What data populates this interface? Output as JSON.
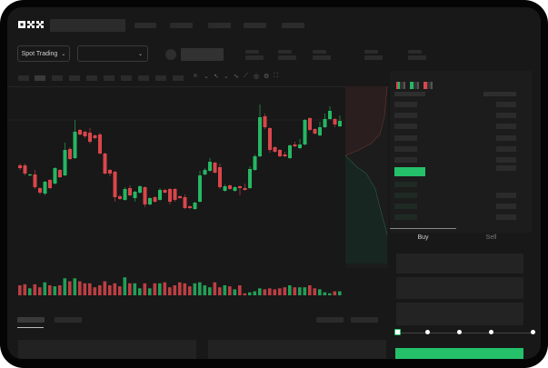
{
  "brand": {
    "logo_text": "OKX"
  },
  "toolbar": {
    "market_selector_label": "Spot Trading",
    "pair_selector_value": "",
    "chevron_icon": "chevron-down-icon"
  },
  "chart_toolbar": {
    "icons": [
      "indicator-icon",
      "chevron-down-icon",
      "cursor-icon",
      "chevron-down-icon",
      "line-icon",
      "ruler-icon",
      "camera-icon",
      "settings-icon",
      "fullscreen-icon"
    ]
  },
  "orderbook": {
    "view_icons": [
      "orderbook-both-icon",
      "orderbook-bids-icon",
      "orderbook-asks-icon"
    ]
  },
  "trade_panel": {
    "tabs": [
      {
        "label": "Buy",
        "active": true
      },
      {
        "label": "Sell",
        "active": false
      }
    ],
    "slider_percent": 0,
    "slider_marks": [
      0,
      25,
      50,
      75,
      100
    ]
  },
  "colors": {
    "up": "#26b763",
    "down": "#d9464b",
    "accent": "#25c06a",
    "background": "#181818"
  },
  "chart_data": {
    "type": "candlestick",
    "grid": false,
    "candles": [
      [
        68,
        70,
        63,
        65
      ],
      [
        68,
        70,
        57,
        59
      ],
      [
        57,
        59,
        56,
        58
      ],
      [
        58,
        63,
        42,
        44
      ],
      [
        43,
        44,
        36,
        38
      ],
      [
        37,
        51,
        35,
        50
      ],
      [
        52,
        53,
        42,
        43
      ],
      [
        48,
        66,
        47,
        65
      ],
      [
        63,
        64,
        54,
        55
      ],
      [
        57,
        93,
        56,
        85
      ],
      [
        86,
        88,
        74,
        75
      ],
      [
        76,
        118,
        75,
        105
      ],
      [
        107,
        108,
        101,
        102
      ],
      [
        105,
        106,
        98,
        100
      ],
      [
        104,
        109,
        92,
        94
      ],
      [
        101,
        102,
        97,
        98
      ],
      [
        102,
        104,
        80,
        81
      ],
      [
        81,
        82,
        58,
        59
      ],
      [
        63,
        64,
        56,
        59
      ],
      [
        61,
        62,
        28,
        33
      ],
      [
        34,
        36,
        30,
        31
      ],
      [
        30,
        44,
        29,
        42
      ],
      [
        43,
        46,
        34,
        35
      ],
      [
        32,
        40,
        28,
        39
      ],
      [
        38,
        46,
        37,
        45
      ],
      [
        44,
        45,
        22,
        25
      ],
      [
        25,
        33,
        24,
        32
      ],
      [
        33,
        34,
        27,
        28
      ],
      [
        30,
        43,
        29,
        41
      ],
      [
        41,
        42,
        37,
        38
      ],
      [
        42,
        43,
        25,
        28
      ],
      [
        42,
        43,
        28,
        30
      ],
      [
        34,
        35,
        31,
        32
      ],
      [
        33,
        36,
        20,
        21
      ],
      [
        23,
        24,
        20,
        21
      ],
      [
        20,
        28,
        19,
        27
      ],
      [
        28,
        62,
        27,
        57
      ],
      [
        58,
        65,
        57,
        63
      ],
      [
        62,
        76,
        61,
        72
      ],
      [
        71,
        72,
        59,
        60
      ],
      [
        66,
        70,
        42,
        44
      ],
      [
        40,
        47,
        39,
        45
      ],
      [
        46,
        47,
        41,
        42
      ],
      [
        40,
        45,
        39,
        44
      ],
      [
        45,
        46,
        35,
        43
      ],
      [
        43,
        48,
        40,
        41
      ],
      [
        43,
        67,
        42,
        64
      ],
      [
        63,
        80,
        62,
        78
      ],
      [
        78,
        135,
        77,
        121
      ],
      [
        122,
        125,
        108,
        110
      ],
      [
        109,
        110,
        82,
        85
      ],
      [
        88,
        89,
        82,
        83
      ],
      [
        85,
        86,
        77,
        78
      ],
      [
        80,
        83,
        77,
        78
      ],
      [
        76,
        91,
        75,
        90
      ],
      [
        91,
        94,
        88,
        89
      ],
      [
        87,
        97,
        86,
        91
      ],
      [
        91,
        119,
        90,
        118
      ],
      [
        120,
        121,
        106,
        107
      ],
      [
        108,
        109,
        102,
        103
      ],
      [
        101,
        116,
        100,
        110
      ],
      [
        110,
        125,
        109,
        119
      ],
      [
        119,
        133,
        118,
        128
      ],
      [
        119,
        120,
        110,
        113
      ],
      [
        111,
        123,
        110,
        117
      ]
    ],
    "volume": [
      10,
      11,
      7,
      11,
      8,
      13,
      10,
      9,
      10,
      17,
      14,
      17,
      14,
      12,
      12,
      8,
      10,
      14,
      10,
      12,
      9,
      18,
      12,
      12,
      7,
      12,
      7,
      12,
      12,
      13,
      8,
      10,
      13,
      12,
      9,
      12,
      13,
      10,
      8,
      13,
      8,
      10,
      9,
      6,
      10,
      2,
      3,
      4,
      7,
      6,
      7,
      6,
      7,
      8,
      10,
      8,
      8,
      8,
      10,
      7,
      6,
      3,
      2,
      4,
      4
    ]
  }
}
